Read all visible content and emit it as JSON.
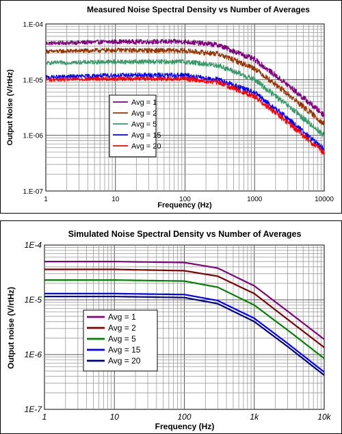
{
  "chart_data": [
    {
      "type": "line",
      "title": "Measured Noise Spectral Density vs Number of Averages",
      "xlabel": "Frequency (Hz)",
      "ylabel": "Output Noise (V/rtHz)",
      "xscale": "log",
      "yscale": "log",
      "xlim": [
        1,
        10000
      ],
      "ylim": [
        1e-07,
        0.0001
      ],
      "xticks": [
        1,
        10,
        100,
        1000,
        10000
      ],
      "xtick_labels": [
        "1",
        "10",
        "100",
        "1000",
        "10000"
      ],
      "yticks": [
        0.0001,
        1e-05,
        1e-06,
        1e-07
      ],
      "ytick_labels": [
        "1.E-04",
        "1.E-05",
        "1.E-06",
        "1.E-07"
      ],
      "grid": true,
      "noisy": true,
      "legend_position": "center-left",
      "series": [
        {
          "name": "Avg = 1",
          "color": "#800080",
          "x": [
            1,
            10,
            100,
            300,
            1000,
            3000,
            10000
          ],
          "y": [
            4.5e-05,
            4.8e-05,
            4.8e-05,
            4.2e-05,
            2.3e-05,
            8e-06,
            2.3e-06
          ]
        },
        {
          "name": "Avg = 2",
          "color": "#993300",
          "x": [
            1,
            10,
            100,
            300,
            1000,
            3000,
            10000
          ],
          "y": [
            3.2e-05,
            3.4e-05,
            3.3e-05,
            2.9e-05,
            1.6e-05,
            5.5e-06,
            1.6e-06
          ]
        },
        {
          "name": "Avg = 5",
          "color": "#339966",
          "x": [
            1,
            10,
            100,
            300,
            1000,
            3000,
            10000
          ],
          "y": [
            2e-05,
            2.1e-05,
            2.1e-05,
            1.8e-05,
            1e-05,
            3.4e-06,
            1e-06
          ]
        },
        {
          "name": "Avg = 15",
          "color": "#0000ff",
          "x": [
            1,
            10,
            100,
            300,
            1000,
            3000,
            10000
          ],
          "y": [
            1.1e-05,
            1.2e-05,
            1.2e-05,
            1e-05,
            5.8e-06,
            2e-06,
            5.5e-07
          ]
        },
        {
          "name": "Avg = 20",
          "color": "#ff0000",
          "x": [
            1,
            10,
            100,
            300,
            1000,
            3000,
            10000
          ],
          "y": [
            1e-05,
            1.05e-05,
            1.05e-05,
            9e-06,
            5e-06,
            1.7e-06,
            4.8e-07
          ]
        }
      ]
    },
    {
      "type": "line",
      "title": "Simulated Noise Spectral Density vs Number of Averages",
      "xlabel": "Frequency (Hz)",
      "ylabel": "Output noise (V/rtHz)",
      "xscale": "log",
      "yscale": "log",
      "xlim": [
        1,
        10000
      ],
      "ylim": [
        1e-07,
        0.0001
      ],
      "xticks": [
        1,
        10,
        100,
        1000,
        10000
      ],
      "xtick_labels": [
        "1",
        "10",
        "100",
        "1k",
        "10k"
      ],
      "yticks": [
        0.0001,
        1e-05,
        1e-06,
        1e-07
      ],
      "ytick_labels": [
        "1E-4",
        "1E-5",
        "1E-6",
        "1E-7"
      ],
      "grid": true,
      "noisy": false,
      "legend_position": "center-left",
      "series": [
        {
          "name": "Avg = 1",
          "color": "#800080",
          "x": [
            1,
            10,
            100,
            300,
            1000,
            3000,
            10000
          ],
          "y": [
            5e-05,
            5e-05,
            4.8e-05,
            3.8e-05,
            1.8e-05,
            6.2e-06,
            1.9e-06
          ]
        },
        {
          "name": "Avg = 2",
          "color": "#800000",
          "x": [
            1,
            10,
            100,
            300,
            1000,
            3000,
            10000
          ],
          "y": [
            3.6e-05,
            3.6e-05,
            3.4e-05,
            2.7e-05,
            1.3e-05,
            4.4e-06,
            1.35e-06
          ]
        },
        {
          "name": "Avg = 5",
          "color": "#008000",
          "x": [
            1,
            10,
            100,
            300,
            1000,
            3000,
            10000
          ],
          "y": [
            2.3e-05,
            2.3e-05,
            2.2e-05,
            1.7e-05,
            8e-06,
            2.8e-06,
            8.5e-07
          ]
        },
        {
          "name": "Avg = 15",
          "color": "#0000ff",
          "x": [
            1,
            10,
            100,
            300,
            1000,
            3000,
            10000
          ],
          "y": [
            1.3e-05,
            1.3e-05,
            1.25e-05,
            9.7e-06,
            4.6e-06,
            1.6e-06,
            4.8e-07
          ]
        },
        {
          "name": "Avg = 20",
          "color": "#000080",
          "x": [
            1,
            10,
            100,
            300,
            1000,
            3000,
            10000
          ],
          "y": [
            1.15e-05,
            1.15e-05,
            1.1e-05,
            8.5e-06,
            4e-06,
            1.4e-06,
            4.2e-07
          ]
        }
      ]
    }
  ]
}
